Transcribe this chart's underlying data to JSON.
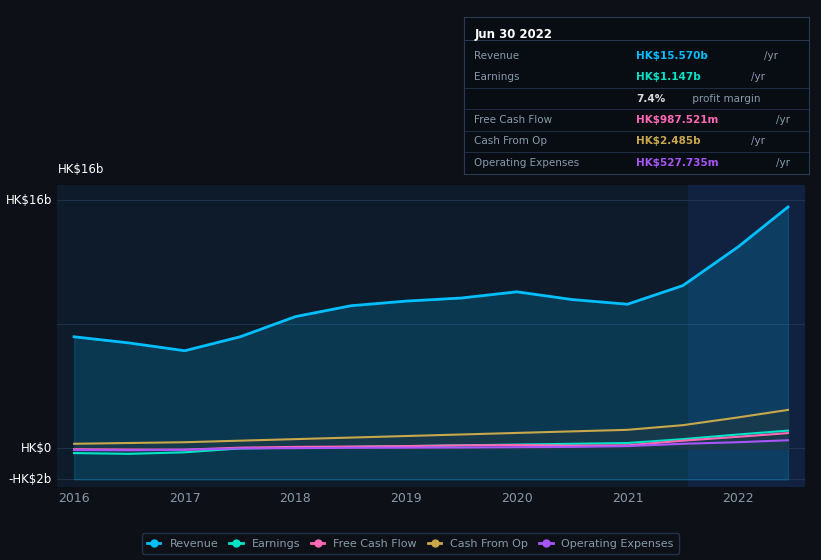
{
  "bg_color": "#0d1117",
  "plot_bg_color": "#0d1b2a",
  "highlight_bg_color": "#112240",
  "grid_color": "#263d5c",
  "text_color": "#8899aa",
  "white_color": "#ffffff",
  "years": [
    2016.0,
    2016.5,
    2017.0,
    2017.5,
    2018.0,
    2018.5,
    2019.0,
    2019.5,
    2020.0,
    2020.5,
    2021.0,
    2021.5,
    2022.0,
    2022.45
  ],
  "revenue": [
    7.2,
    6.8,
    6.3,
    7.2,
    8.5,
    9.2,
    9.5,
    9.7,
    10.1,
    9.6,
    9.3,
    10.5,
    13.0,
    15.57
  ],
  "earnings": [
    -0.3,
    -0.35,
    -0.25,
    0.0,
    0.05,
    0.1,
    0.15,
    0.2,
    0.25,
    0.3,
    0.35,
    0.6,
    0.9,
    1.147
  ],
  "free_cash_flow": [
    -0.05,
    -0.07,
    -0.08,
    0.05,
    0.1,
    0.12,
    0.15,
    0.2,
    0.22,
    0.18,
    0.2,
    0.5,
    0.75,
    0.9876
  ],
  "cash_from_op": [
    0.3,
    0.35,
    0.4,
    0.5,
    0.6,
    0.7,
    0.8,
    0.9,
    1.0,
    1.1,
    1.2,
    1.5,
    2.0,
    2.485
  ],
  "operating_expenses": [
    -0.1,
    -0.12,
    -0.08,
    0.0,
    0.02,
    0.04,
    0.05,
    0.06,
    0.08,
    0.1,
    0.15,
    0.3,
    0.4,
    0.5277
  ],
  "revenue_color": "#00bfff",
  "earnings_color": "#00e5c8",
  "free_cash_flow_color": "#ff69b4",
  "cash_from_op_color": "#c8a84b",
  "operating_expenses_color": "#a855f7",
  "ylim_min": -2.5,
  "ylim_max": 17.0,
  "ymin_data": -2.0,
  "ymax_data": 16.0,
  "xticks": [
    2016,
    2017,
    2018,
    2019,
    2020,
    2021,
    2022
  ],
  "xlim_min": 2015.85,
  "xlim_max": 2022.6,
  "highlight_start": 2021.55,
  "infobox": {
    "date": "Jun 30 2022",
    "rows": [
      {
        "label": "Revenue",
        "value": "HK$15.570b",
        "unit": "/yr",
        "value_color": "#00bfff"
      },
      {
        "label": "Earnings",
        "value": "HK$1.147b",
        "unit": "/yr",
        "value_color": "#00e5c8"
      },
      {
        "label": "",
        "value": "7.4%",
        "unit": " profit margin",
        "value_color": "#dddddd"
      },
      {
        "label": "Free Cash Flow",
        "value": "HK$987.521m",
        "unit": "/yr",
        "value_color": "#ff69b4"
      },
      {
        "label": "Cash From Op",
        "value": "HK$2.485b",
        "unit": "/yr",
        "value_color": "#c8a84b"
      },
      {
        "label": "Operating Expenses",
        "value": "HK$527.735m",
        "unit": "/yr",
        "value_color": "#a855f7"
      }
    ]
  },
  "legend_items": [
    {
      "label": "Revenue",
      "color": "#00bfff"
    },
    {
      "label": "Earnings",
      "color": "#00e5c8"
    },
    {
      "label": "Free Cash Flow",
      "color": "#ff69b4"
    },
    {
      "label": "Cash From Op",
      "color": "#c8a84b"
    },
    {
      "label": "Operating Expenses",
      "color": "#a855f7"
    }
  ]
}
